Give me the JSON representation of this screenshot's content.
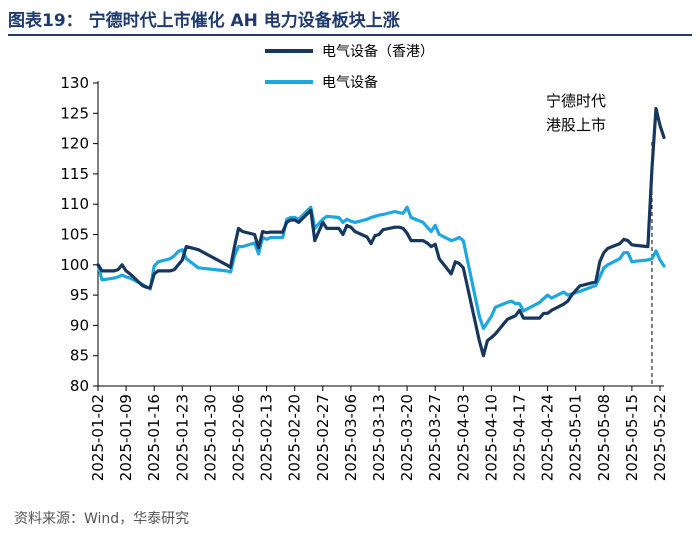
{
  "title": "图表19：  宁德时代上市催化 AH 电力设备板块上涨",
  "source": "资料来源：Wind，华泰研究",
  "chart_data": {
    "type": "line",
    "title": "宁德时代上市催化 AH 电力设备板块上涨",
    "xlabel": "",
    "ylabel": "",
    "ylim": [
      80,
      130
    ],
    "yticks": [
      80,
      85,
      90,
      95,
      100,
      105,
      110,
      115,
      120,
      125,
      130
    ],
    "grid": false,
    "legend_position": "top-center",
    "x_range": [
      "2025-01-02",
      "2025-05-23"
    ],
    "x_tick_labels": [
      "2025-01-02",
      "2025-01-09",
      "2025-01-16",
      "2025-01-23",
      "2025-01-30",
      "2025-02-06",
      "2025-02-13",
      "2025-02-20",
      "2025-02-27",
      "2025-03-06",
      "2025-03-13",
      "2025-03-20",
      "2025-03-27",
      "2025-04-03",
      "2025-04-10",
      "2025-04-17",
      "2025-04-24",
      "2025-05-01",
      "2025-05-08",
      "2025-05-15",
      "2025-05-22"
    ],
    "annotation": {
      "lines": [
        "宁德时代",
        "港股上市"
      ],
      "x": "2025-05-20",
      "style": "dashed vertical line"
    },
    "series": [
      {
        "name": "电气设备（香港）",
        "color": "#17375e",
        "points": [
          [
            "2025-01-02",
            100.0
          ],
          [
            "2025-01-03",
            99.0
          ],
          [
            "2025-01-06",
            99.0
          ],
          [
            "2025-01-07",
            99.2
          ],
          [
            "2025-01-08",
            100.0
          ],
          [
            "2025-01-09",
            99.0
          ],
          [
            "2025-01-10",
            98.5
          ],
          [
            "2025-01-13",
            96.6
          ],
          [
            "2025-01-14",
            96.3
          ],
          [
            "2025-01-15",
            96.2
          ],
          [
            "2025-01-16",
            98.5
          ],
          [
            "2025-01-17",
            99.0
          ],
          [
            "2025-01-20",
            99.0
          ],
          [
            "2025-01-21",
            99.2
          ],
          [
            "2025-01-22",
            100.0
          ],
          [
            "2025-01-23",
            100.8
          ],
          [
            "2025-01-24",
            103.0
          ],
          [
            "2025-01-27",
            102.5
          ],
          [
            "2025-02-03",
            100.0
          ],
          [
            "2025-02-04",
            99.6
          ],
          [
            "2025-02-05",
            103.0
          ],
          [
            "2025-02-06",
            106.0
          ],
          [
            "2025-02-07",
            105.5
          ],
          [
            "2025-02-10",
            105.0
          ],
          [
            "2025-02-11",
            102.8
          ],
          [
            "2025-02-12",
            105.5
          ],
          [
            "2025-02-13",
            105.3
          ],
          [
            "2025-02-14",
            105.4
          ],
          [
            "2025-02-17",
            105.4
          ],
          [
            "2025-02-18",
            107.0
          ],
          [
            "2025-02-19",
            107.4
          ],
          [
            "2025-02-20",
            107.4
          ],
          [
            "2025-02-21",
            107.0
          ],
          [
            "2025-02-24",
            109.0
          ],
          [
            "2025-02-25",
            104.0
          ],
          [
            "2025-02-26",
            105.5
          ],
          [
            "2025-02-27",
            107.0
          ],
          [
            "2025-02-28",
            106.0
          ],
          [
            "2025-03-03",
            106.0
          ],
          [
            "2025-03-04",
            105.0
          ],
          [
            "2025-03-05",
            106.5
          ],
          [
            "2025-03-06",
            106.2
          ],
          [
            "2025-03-07",
            105.5
          ],
          [
            "2025-03-10",
            104.6
          ],
          [
            "2025-03-11",
            103.5
          ],
          [
            "2025-03-12",
            104.8
          ],
          [
            "2025-03-13",
            105.0
          ],
          [
            "2025-03-14",
            105.8
          ],
          [
            "2025-03-17",
            106.2
          ],
          [
            "2025-03-18",
            106.2
          ],
          [
            "2025-03-19",
            106.0
          ],
          [
            "2025-03-20",
            105.2
          ],
          [
            "2025-03-21",
            104.0
          ],
          [
            "2025-03-24",
            104.0
          ],
          [
            "2025-03-25",
            103.6
          ],
          [
            "2025-03-26",
            103.0
          ],
          [
            "2025-03-27",
            103.4
          ],
          [
            "2025-03-28",
            101.0
          ],
          [
            "2025-03-31",
            98.5
          ],
          [
            "2025-04-01",
            100.5
          ],
          [
            "2025-04-02",
            100.2
          ],
          [
            "2025-04-03",
            99.5
          ],
          [
            "2025-04-07",
            87.5
          ],
          [
            "2025-04-08",
            85.0
          ],
          [
            "2025-04-09",
            87.5
          ],
          [
            "2025-04-10",
            88.0
          ],
          [
            "2025-04-11",
            88.6
          ],
          [
            "2025-04-14",
            91.0
          ],
          [
            "2025-04-15",
            91.3
          ],
          [
            "2025-04-16",
            91.6
          ],
          [
            "2025-04-17",
            92.5
          ],
          [
            "2025-04-18",
            91.2
          ],
          [
            "2025-04-22",
            91.2
          ],
          [
            "2025-04-23",
            92.0
          ],
          [
            "2025-04-24",
            92.0
          ],
          [
            "2025-04-25",
            92.5
          ],
          [
            "2025-04-28",
            93.5
          ],
          [
            "2025-04-29",
            94.0
          ],
          [
            "2025-04-30",
            95.0
          ],
          [
            "2025-05-02",
            96.5
          ],
          [
            "2025-05-06",
            97.2
          ],
          [
            "2025-05-07",
            100.5
          ],
          [
            "2025-05-08",
            102.0
          ],
          [
            "2025-05-09",
            102.7
          ],
          [
            "2025-05-12",
            103.5
          ],
          [
            "2025-05-13",
            104.2
          ],
          [
            "2025-05-14",
            104.0
          ],
          [
            "2025-05-15",
            103.3
          ],
          [
            "2025-05-16",
            103.2
          ],
          [
            "2025-05-19",
            103.0
          ],
          [
            "2025-05-20",
            116.0
          ],
          [
            "2025-05-21",
            125.8
          ],
          [
            "2025-05-22",
            123.0
          ],
          [
            "2025-05-23",
            121.0
          ]
        ]
      },
      {
        "name": "电气设备",
        "color": "#1ea6e0",
        "points": [
          [
            "2025-01-02",
            100.0
          ],
          [
            "2025-01-03",
            97.5
          ],
          [
            "2025-01-06",
            97.8
          ],
          [
            "2025-01-07",
            98.0
          ],
          [
            "2025-01-08",
            98.3
          ],
          [
            "2025-01-09",
            98.0
          ],
          [
            "2025-01-10",
            97.8
          ],
          [
            "2025-01-13",
            96.8
          ],
          [
            "2025-01-14",
            96.4
          ],
          [
            "2025-01-15",
            96.0
          ],
          [
            "2025-01-16",
            99.8
          ],
          [
            "2025-01-17",
            100.5
          ],
          [
            "2025-01-20",
            101.0
          ],
          [
            "2025-01-21",
            101.5
          ],
          [
            "2025-01-22",
            102.2
          ],
          [
            "2025-01-23",
            102.5
          ],
          [
            "2025-01-24",
            101.0
          ],
          [
            "2025-01-27",
            99.5
          ],
          [
            "2025-02-03",
            99.0
          ],
          [
            "2025-02-04",
            98.8
          ],
          [
            "2025-02-05",
            101.5
          ],
          [
            "2025-02-06",
            103.0
          ],
          [
            "2025-02-07",
            103.0
          ],
          [
            "2025-02-10",
            103.6
          ],
          [
            "2025-02-11",
            101.8
          ],
          [
            "2025-02-12",
            104.5
          ],
          [
            "2025-02-13",
            104.2
          ],
          [
            "2025-02-14",
            104.5
          ],
          [
            "2025-02-17",
            104.5
          ],
          [
            "2025-02-18",
            107.5
          ],
          [
            "2025-02-19",
            107.8
          ],
          [
            "2025-02-20",
            107.8
          ],
          [
            "2025-02-21",
            107.5
          ],
          [
            "2025-02-24",
            109.5
          ],
          [
            "2025-02-25",
            106.0
          ],
          [
            "2025-02-26",
            106.8
          ],
          [
            "2025-02-27",
            107.5
          ],
          [
            "2025-02-28",
            108.0
          ],
          [
            "2025-03-03",
            107.8
          ],
          [
            "2025-03-04",
            107.0
          ],
          [
            "2025-03-05",
            107.5
          ],
          [
            "2025-03-06",
            107.2
          ],
          [
            "2025-03-07",
            107.0
          ],
          [
            "2025-03-10",
            107.5
          ],
          [
            "2025-03-11",
            107.8
          ],
          [
            "2025-03-12",
            108.0
          ],
          [
            "2025-03-13",
            108.2
          ],
          [
            "2025-03-14",
            108.3
          ],
          [
            "2025-03-17",
            108.8
          ],
          [
            "2025-03-18",
            108.6
          ],
          [
            "2025-03-19",
            108.5
          ],
          [
            "2025-03-20",
            109.5
          ],
          [
            "2025-03-21",
            107.8
          ],
          [
            "2025-03-24",
            107.0
          ],
          [
            "2025-03-25",
            106.2
          ],
          [
            "2025-03-26",
            105.5
          ],
          [
            "2025-03-27",
            106.5
          ],
          [
            "2025-03-28",
            105.0
          ],
          [
            "2025-03-31",
            104.0
          ],
          [
            "2025-04-01",
            104.2
          ],
          [
            "2025-04-02",
            104.5
          ],
          [
            "2025-04-03",
            104.0
          ],
          [
            "2025-04-07",
            91.5
          ],
          [
            "2025-04-08",
            89.5
          ],
          [
            "2025-04-09",
            90.5
          ],
          [
            "2025-04-10",
            91.5
          ],
          [
            "2025-04-11",
            93.0
          ],
          [
            "2025-04-14",
            93.8
          ],
          [
            "2025-04-15",
            94.0
          ],
          [
            "2025-04-16",
            93.6
          ],
          [
            "2025-04-17",
            93.6
          ],
          [
            "2025-04-18",
            92.4
          ],
          [
            "2025-04-22",
            93.8
          ],
          [
            "2025-04-23",
            94.4
          ],
          [
            "2025-04-24",
            95.0
          ],
          [
            "2025-04-25",
            94.5
          ],
          [
            "2025-04-28",
            95.5
          ],
          [
            "2025-04-29",
            95.0
          ],
          [
            "2025-04-30",
            95.2
          ],
          [
            "2025-05-02",
            95.6
          ],
          [
            "2025-05-06",
            96.6
          ],
          [
            "2025-05-07",
            98.0
          ],
          [
            "2025-05-08",
            99.5
          ],
          [
            "2025-05-09",
            100.0
          ],
          [
            "2025-05-12",
            101.0
          ],
          [
            "2025-05-13",
            102.0
          ],
          [
            "2025-05-14",
            102.0
          ],
          [
            "2025-05-15",
            100.5
          ],
          [
            "2025-05-16",
            100.6
          ],
          [
            "2025-05-19",
            100.8
          ],
          [
            "2025-05-20",
            101.0
          ],
          [
            "2025-05-21",
            102.3
          ],
          [
            "2025-05-22",
            100.8
          ],
          [
            "2025-05-23",
            99.8
          ]
        ]
      }
    ]
  }
}
